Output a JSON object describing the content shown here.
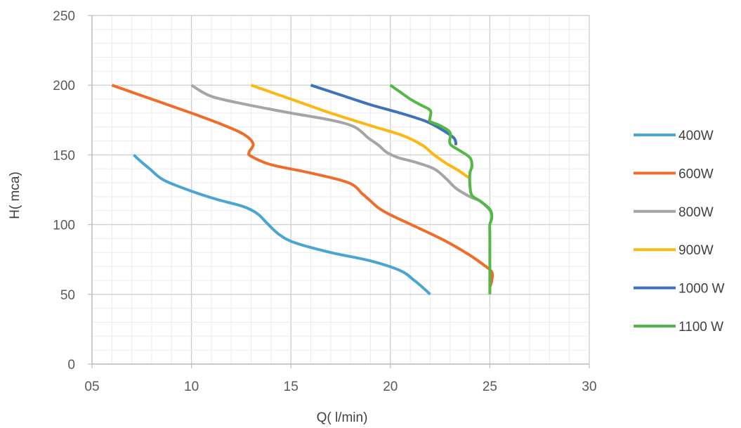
{
  "chart_data": {
    "type": "line",
    "title": "",
    "xlabel": "Q( l/min)",
    "ylabel": "H( mca)",
    "xlim": [
      5,
      30
    ],
    "ylim": [
      0,
      250
    ],
    "x_tick_labels": [
      {
        "value": 5,
        "label": "05"
      },
      {
        "value": 10,
        "label": "10"
      },
      {
        "value": 15,
        "label": "15"
      },
      {
        "value": 20,
        "label": "20"
      },
      {
        "value": 25,
        "label": "25"
      },
      {
        "value": 30,
        "label": "30"
      }
    ],
    "y_tick_labels": [
      {
        "value": 0,
        "label": "0"
      },
      {
        "value": 50,
        "label": "50"
      },
      {
        "value": 100,
        "label": "100"
      },
      {
        "value": 150,
        "label": "150"
      },
      {
        "value": 200,
        "label": "200"
      },
      {
        "value": 250,
        "label": "250"
      }
    ],
    "grid": "major and minor",
    "legend_position": "right",
    "series": [
      {
        "name": "400W",
        "color": "#4aa5d3",
        "points": [
          [
            7.1,
            150
          ],
          [
            7.4,
            146
          ],
          [
            7.9,
            140
          ],
          [
            8.6,
            132
          ],
          [
            10,
            124
          ],
          [
            11.3,
            118
          ],
          [
            12.6,
            113
          ],
          [
            13.3,
            108
          ],
          [
            13.8,
            101
          ],
          [
            14.4,
            93
          ],
          [
            15.2,
            87
          ],
          [
            17,
            80
          ],
          [
            19,
            74
          ],
          [
            20.5,
            67
          ],
          [
            21.2,
            60
          ],
          [
            21.7,
            54
          ],
          [
            22,
            50
          ]
        ]
      },
      {
        "name": "600W",
        "color": "#ee6d2b",
        "points": [
          [
            6,
            200
          ],
          [
            8,
            190
          ],
          [
            10,
            180
          ],
          [
            11.5,
            172
          ],
          [
            12.6,
            165
          ],
          [
            13.1,
            158
          ],
          [
            12.9,
            152
          ],
          [
            13,
            149
          ],
          [
            14,
            143
          ],
          [
            16,
            137
          ],
          [
            17.9,
            130
          ],
          [
            18.6,
            122
          ],
          [
            19,
            117
          ],
          [
            19.4,
            112
          ],
          [
            20,
            107
          ],
          [
            21.5,
            97
          ],
          [
            22.8,
            88
          ],
          [
            24,
            78
          ],
          [
            24.7,
            71
          ],
          [
            25.1,
            66
          ],
          [
            25.1,
            60
          ],
          [
            25,
            55
          ]
        ]
      },
      {
        "name": "800W",
        "color": "#a5a5a5",
        "points": [
          [
            10,
            200
          ],
          [
            11,
            192
          ],
          [
            12.8,
            186
          ],
          [
            15,
            180
          ],
          [
            17,
            175
          ],
          [
            18.2,
            170
          ],
          [
            18.9,
            162
          ],
          [
            19.4,
            157
          ],
          [
            19.8,
            152
          ],
          [
            20.4,
            148
          ],
          [
            21.2,
            145
          ],
          [
            22.2,
            140
          ],
          [
            22.8,
            133
          ],
          [
            23.3,
            126
          ],
          [
            24,
            120
          ],
          [
            24.5,
            117
          ],
          [
            24.9,
            112
          ],
          [
            25.1,
            108
          ]
        ]
      },
      {
        "name": "900W",
        "color": "#fbb813",
        "points": [
          [
            13,
            200
          ],
          [
            15,
            190
          ],
          [
            17,
            180
          ],
          [
            19,
            171
          ],
          [
            20.6,
            164
          ],
          [
            21.6,
            157
          ],
          [
            22.2,
            150
          ],
          [
            22.8,
            144
          ],
          [
            23.4,
            139
          ],
          [
            24,
            133
          ]
        ]
      },
      {
        "name": "1000 W",
        "color": "#3e73b9",
        "points": [
          [
            16,
            200
          ],
          [
            17.5,
            193
          ],
          [
            19,
            186
          ],
          [
            20.5,
            180
          ],
          [
            21.8,
            174
          ],
          [
            22.6,
            168
          ],
          [
            23.2,
            162
          ],
          [
            23.3,
            157
          ]
        ]
      },
      {
        "name": "1100 W",
        "color": "#54b847",
        "points": [
          [
            20,
            200
          ],
          [
            20.5,
            195
          ],
          [
            21,
            190
          ],
          [
            21.5,
            186
          ],
          [
            22,
            182
          ],
          [
            22,
            177
          ],
          [
            22,
            174
          ],
          [
            22.5,
            171
          ],
          [
            23,
            166
          ],
          [
            23,
            158
          ],
          [
            23.5,
            153
          ],
          [
            24,
            148
          ],
          [
            24.1,
            142
          ],
          [
            24,
            137
          ],
          [
            24,
            128
          ],
          [
            24.1,
            121
          ],
          [
            24.5,
            117
          ],
          [
            25,
            111
          ],
          [
            25.1,
            105
          ],
          [
            25,
            100
          ],
          [
            25,
            92
          ],
          [
            25,
            75
          ],
          [
            25,
            60
          ],
          [
            25,
            50
          ]
        ]
      }
    ]
  }
}
